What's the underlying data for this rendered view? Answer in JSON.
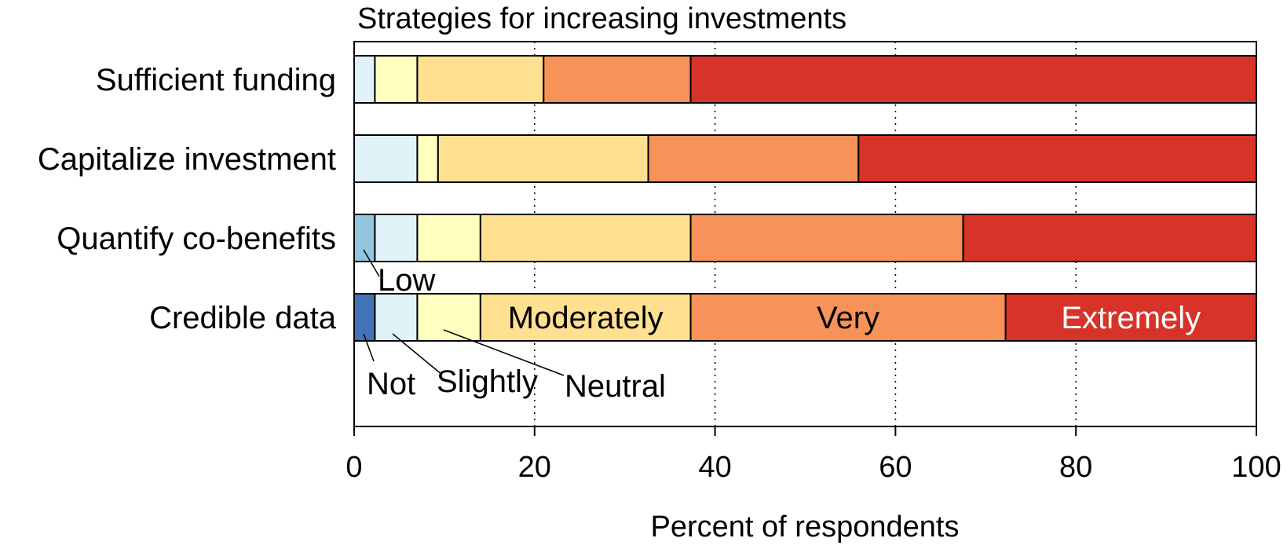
{
  "chart_data": {
    "type": "bar",
    "orientation": "horizontal",
    "stacked": true,
    "title": "Strategies for increasing investments",
    "xlabel": "Percent of respondents",
    "ylabel": "",
    "xlim": [
      0,
      100
    ],
    "xticks": [
      0,
      20,
      40,
      60,
      80,
      100
    ],
    "grid": "vertical dotted",
    "categories": [
      "Sufficient funding",
      "Capitalize investment",
      "Quantify co-benefits",
      "Credible data"
    ],
    "series": [
      {
        "name": "Not",
        "color": "#4472b8",
        "values": [
          0,
          0,
          0,
          2.3
        ]
      },
      {
        "name": "Low",
        "color": "#92c5de",
        "values": [
          0,
          0,
          2.3,
          0
        ]
      },
      {
        "name": "Slightly",
        "color": "#e0f3f8",
        "values": [
          2.3,
          7.0,
          4.7,
          4.7
        ]
      },
      {
        "name": "Neutral",
        "color": "#ffffbf",
        "values": [
          4.7,
          2.3,
          7.0,
          7.0
        ]
      },
      {
        "name": "Moderately",
        "color": "#fee090",
        "values": [
          14.0,
          23.3,
          23.3,
          23.3
        ]
      },
      {
        "name": "Very",
        "color": "#f79258",
        "values": [
          16.3,
          23.3,
          30.2,
          34.9
        ]
      },
      {
        "name": "Extremely",
        "color": "#d73328",
        "values": [
          62.7,
          44.1,
          32.5,
          27.8
        ]
      }
    ],
    "inline_labels": [
      {
        "text": "Moderately",
        "category": "Credible data",
        "series": "Moderately",
        "color": "#000000"
      },
      {
        "text": "Very",
        "category": "Credible data",
        "series": "Very",
        "color": "#000000"
      },
      {
        "text": "Extremely",
        "category": "Credible data",
        "series": "Extremely",
        "color": "#ffffff"
      }
    ],
    "annotations": [
      "Low",
      "Not",
      "Slightly",
      "Neutral"
    ]
  }
}
